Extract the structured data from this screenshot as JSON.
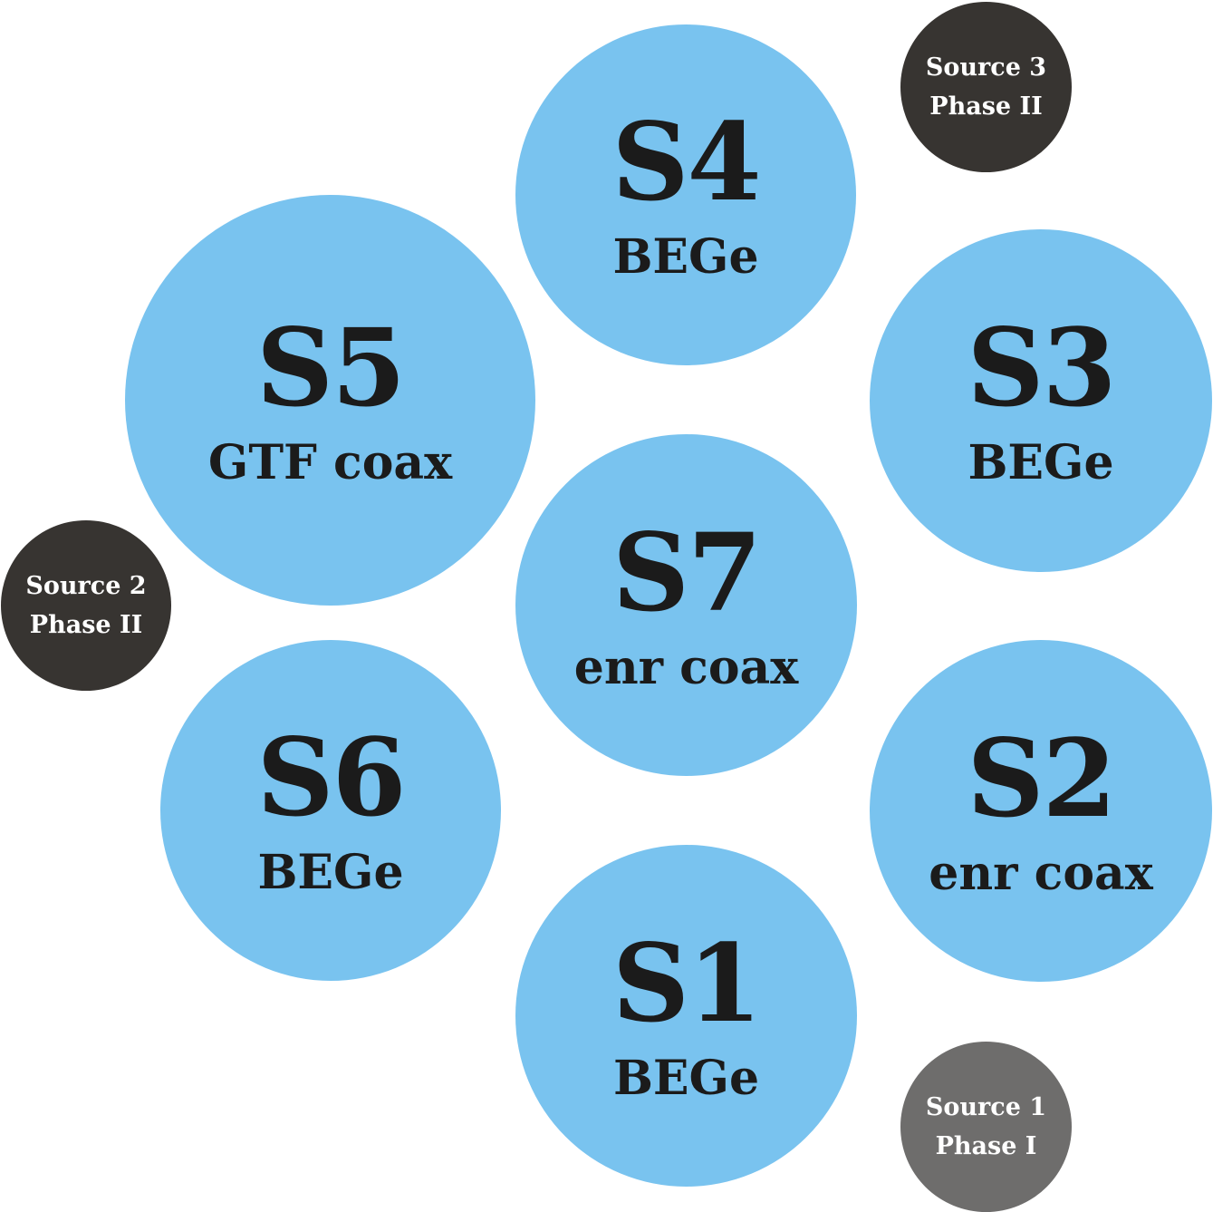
{
  "colors": {
    "string_fill": "#79c3ef",
    "source_dark": "#373431",
    "source_gray": "#6e6d6c",
    "string_text": "#1b1b1b",
    "source_text": "#ffffff"
  },
  "strings": {
    "s4": {
      "id": "S4",
      "type": "BEGe"
    },
    "s5": {
      "id": "S5",
      "type": "GTF coax"
    },
    "s3": {
      "id": "S3",
      "type": "BEGe"
    },
    "s7": {
      "id": "S7",
      "type": "enr coax"
    },
    "s6": {
      "id": "S6",
      "type": "BEGe"
    },
    "s2": {
      "id": "S2",
      "type": "enr coax"
    },
    "s1": {
      "id": "S1",
      "type": "BEGe"
    }
  },
  "sources": {
    "source3": {
      "name": "Source 3",
      "phase": "Phase II"
    },
    "source2": {
      "name": "Source 2",
      "phase": "Phase II"
    },
    "source1": {
      "name": "Source 1",
      "phase": "Phase I"
    }
  }
}
